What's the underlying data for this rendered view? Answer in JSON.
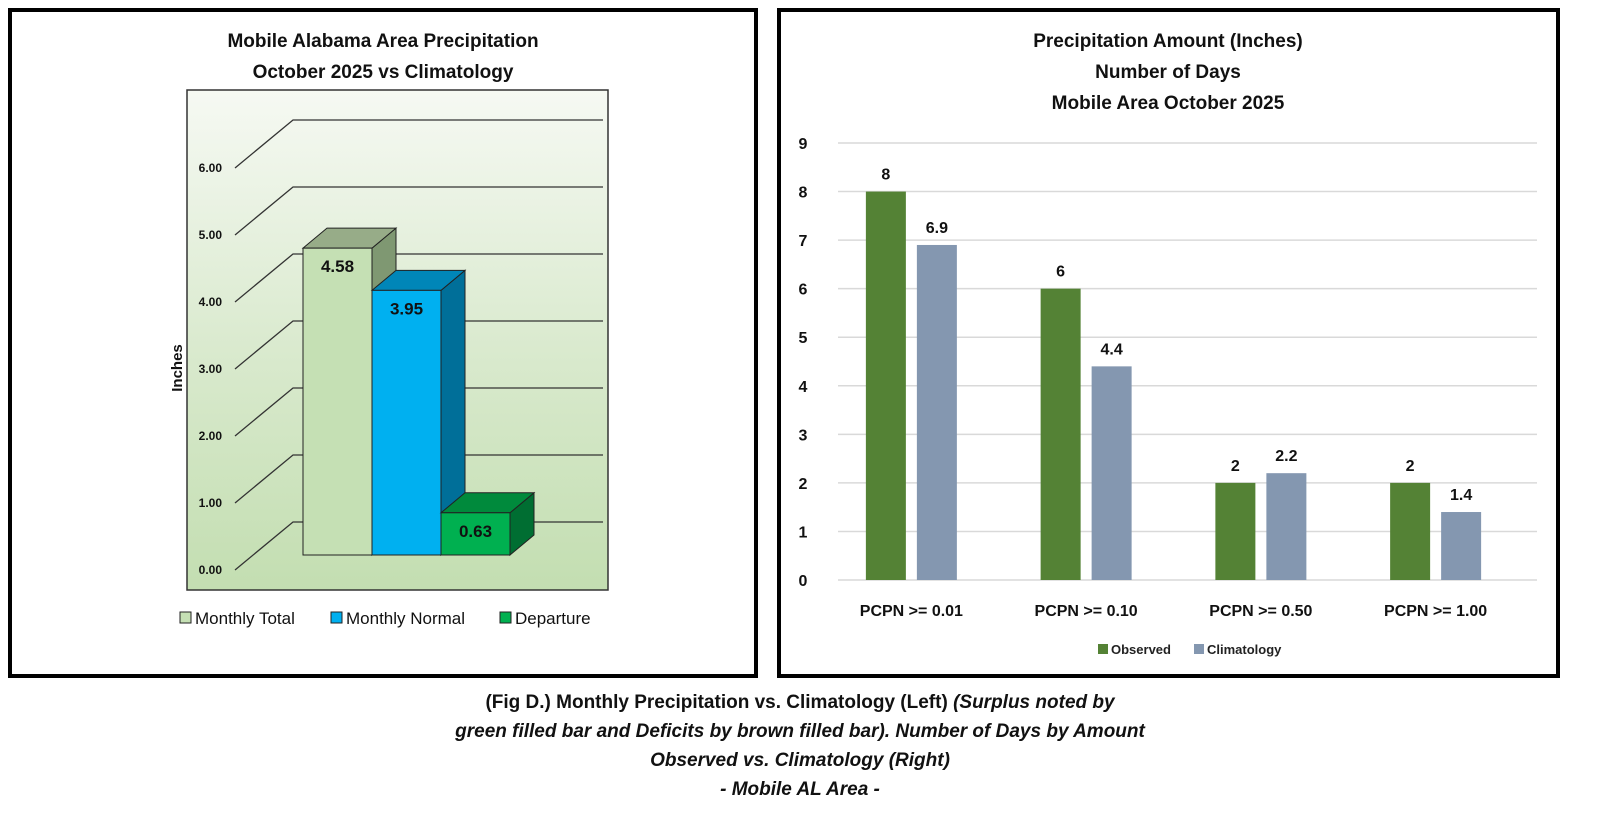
{
  "chart_data": [
    {
      "type": "bar",
      "style": "3d-column",
      "title_lines": [
        "Mobile Alabama Area Precipitation",
        "October 2025 vs Climatology"
      ],
      "xlabel": "",
      "ylabel": "Inches",
      "ylim": [
        0,
        6
      ],
      "yticks": [
        "0.00",
        "1.00",
        "2.00",
        "3.00",
        "4.00",
        "5.00",
        "6.00"
      ],
      "grid": true,
      "legend_position": "bottom",
      "series": [
        {
          "name": "Monthly Total",
          "value": 4.58,
          "label": "4.58",
          "color": "#c5e0b4",
          "side_color": "#7f9872",
          "top_color": "#97ac88"
        },
        {
          "name": "Monthly Normal",
          "value": 3.95,
          "label": "3.95",
          "color": "#00b0f0",
          "side_color": "#006f99",
          "top_color": "#0086b8"
        },
        {
          "name": "Departure",
          "value": 0.63,
          "label": "0.63",
          "color": "#00b050",
          "side_color": "#006e32",
          "top_color": "#008a3c"
        }
      ]
    },
    {
      "type": "bar",
      "title_lines": [
        "Precipitation Amount (Inches)",
        "Number of Days",
        "Mobile Area October 2025"
      ],
      "xlabel": "",
      "ylabel": "",
      "ylim": [
        0,
        9
      ],
      "yticks": [
        "0",
        "1",
        "2",
        "3",
        "4",
        "5",
        "6",
        "7",
        "8",
        "9"
      ],
      "grid": true,
      "legend_position": "bottom",
      "categories": [
        "PCPN >= 0.01",
        "PCPN >= 0.10",
        "PCPN >= 0.50",
        "PCPN >= 1.00"
      ],
      "series": [
        {
          "name": "Observed",
          "values": [
            8,
            6,
            2,
            2
          ],
          "labels": [
            "8",
            "6",
            "2",
            "2"
          ],
          "color": "#548235"
        },
        {
          "name": "Climatology",
          "values": [
            6.9,
            4.4,
            2.2,
            1.4
          ],
          "labels": [
            "6.9",
            "4.4",
            "2.2",
            "1.4"
          ],
          "color": "#8497b0"
        }
      ]
    }
  ],
  "caption": {
    "line1_plain": "(Fig D.) Monthly Precipitation vs. Climatology (Left) ",
    "line1_italic": "(Surplus noted by",
    "line2": "green filled bar and Deficits by brown filled bar). Number of Days by Amount",
    "line3": "Observed vs. Climatology (Right)",
    "line4": "- Mobile AL Area -"
  }
}
